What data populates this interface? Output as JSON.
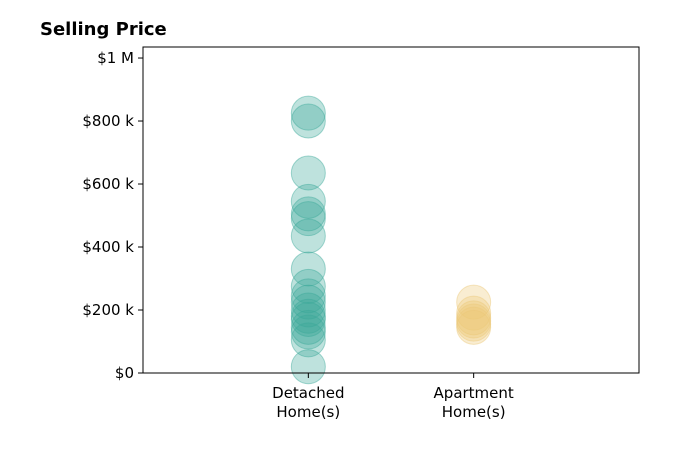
{
  "chart_data": {
    "type": "scatter",
    "title": "Selling Price",
    "xlabel": "",
    "ylabel": "",
    "categories": [
      {
        "lines": [
          "Detached",
          "Home(s)"
        ],
        "color": "#3aa898"
      },
      {
        "lines": [
          "Apartment",
          "Home(s)"
        ],
        "color": "#ecc877"
      }
    ],
    "yticks": [
      {
        "value": 0,
        "label": "$0"
      },
      {
        "value": 200000,
        "label": "$200 k"
      },
      {
        "value": 400000,
        "label": "$400 k"
      },
      {
        "value": 600000,
        "label": "$600 k"
      },
      {
        "value": 800000,
        "label": "$800 k"
      },
      {
        "value": 1000000,
        "label": "$1 M"
      }
    ],
    "ylim": [
      0,
      1035000
    ],
    "xlim": [
      -1,
      2
    ],
    "grid": false,
    "legend": "none",
    "series": [
      {
        "category_index": 0,
        "values": [
          825000,
          800000,
          635000,
          545000,
          505000,
          490000,
          435000,
          330000,
          275000,
          245000,
          225000,
          200000,
          180000,
          170000,
          145000,
          130000,
          105000,
          20000
        ]
      },
      {
        "category_index": 1,
        "values": [
          225000,
          190000,
          175000,
          165000,
          155000,
          145000
        ]
      }
    ]
  }
}
